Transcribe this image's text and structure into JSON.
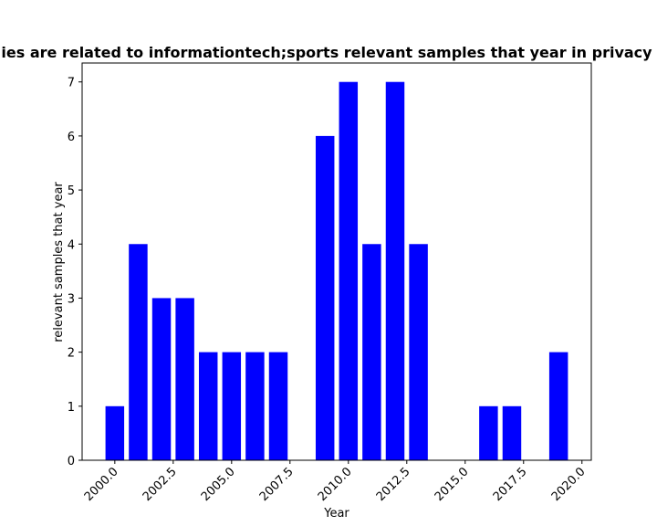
{
  "chart_data": {
    "type": "bar",
    "title": "ies are related to informationtech;sports relevant samples that year in privacy",
    "xlabel": "Year",
    "ylabel": "relevant samples that year",
    "x": [
      2000,
      2001,
      2002,
      2003,
      2004,
      2005,
      2006,
      2007,
      2009,
      2010,
      2011,
      2012,
      2013,
      2016,
      2017,
      2019
    ],
    "values": [
      1,
      4,
      3,
      3,
      2,
      2,
      2,
      2,
      6,
      7,
      4,
      7,
      4,
      1,
      1,
      2
    ],
    "xlim": [
      1998.6,
      2020.4
    ],
    "ylim": [
      0,
      7.35
    ],
    "xticks": [
      2000.0,
      2002.5,
      2005.0,
      2007.5,
      2010.0,
      2012.5,
      2015.0,
      2017.5,
      2020.0
    ],
    "xtick_labels": [
      "2000.0",
      "2002.5",
      "2005.0",
      "2007.5",
      "2010.0",
      "2012.5",
      "2015.0",
      "2017.5",
      "2020.0"
    ],
    "yticks": [
      0,
      1,
      2,
      3,
      4,
      5,
      6,
      7
    ],
    "ytick_labels": [
      "0",
      "1",
      "2",
      "3",
      "4",
      "5",
      "6",
      "7"
    ],
    "bar_color": "#0000ff",
    "grid": false,
    "legend": "none"
  }
}
